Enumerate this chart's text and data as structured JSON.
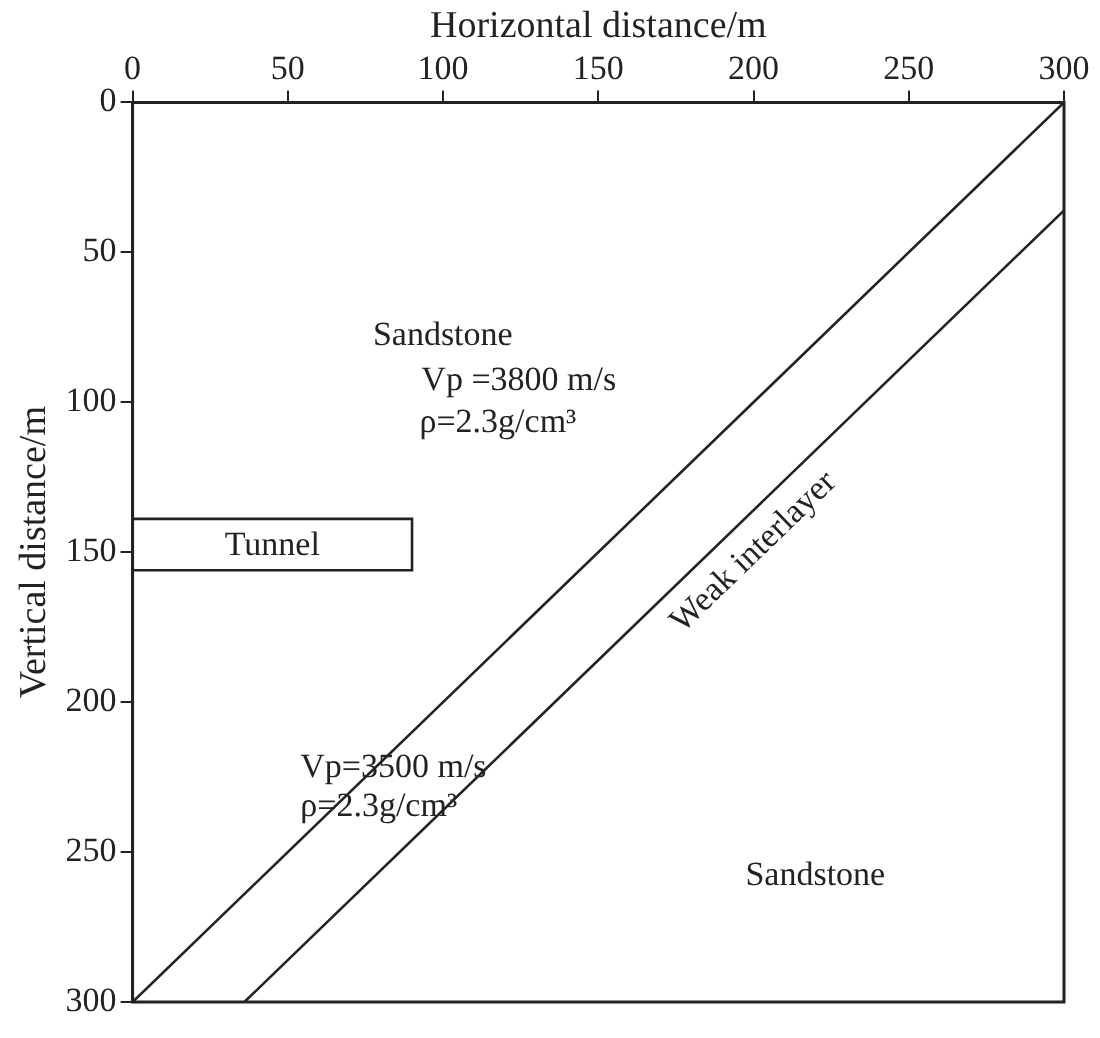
{
  "chart_data": {
    "type": "line",
    "xlabel": "Horizontal distance/m",
    "ylabel": "Vertical distance/m",
    "xlim": [
      0,
      300
    ],
    "xticks": [
      0,
      50,
      100,
      150,
      200,
      250,
      300
    ],
    "ylim": [
      300,
      0
    ],
    "yticks": [
      0,
      50,
      100,
      150,
      200,
      250,
      300
    ],
    "grid": false,
    "legend": false,
    "marker": "none",
    "line_style": "solid",
    "series": [
      {
        "color": "#222222",
        "x": [
          0,
          300
        ],
        "values": [
          300,
          0
        ]
      },
      {
        "color": "#222222",
        "x": [
          36,
          300
        ],
        "values": [
          300,
          36
        ]
      }
    ],
    "annotations": [
      "Sandstone",
      "Vp =3800 m/s",
      "ρ=2.3g/cm³",
      "Tunnel",
      "Weak interlayer",
      "Vp=3500 m/s",
      "ρ=2.3g/cm³",
      "Sandstone"
    ]
  }
}
